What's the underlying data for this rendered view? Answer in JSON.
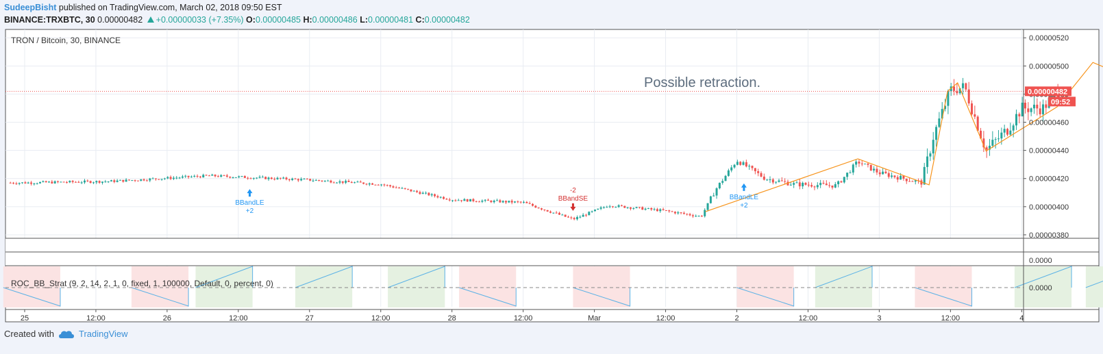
{
  "header": {
    "user": "SudeepBisht",
    "published": "published on TradingView.com, March 02, 2018 09:50 EST",
    "symbol": "BINANCE:TRXBTC, 30",
    "last": "0.00000482",
    "change": "+0.00000033 (+7.35%)",
    "o_label": "O:",
    "o": "0.00000485",
    "h_label": "H:",
    "h": "0.00000486",
    "l_label": "L:",
    "l": "0.00000481",
    "c_label": "C:",
    "c": "0.00000482"
  },
  "footer": {
    "created": "Created with",
    "brand": "TradingView"
  },
  "colors": {
    "up": "#26a69a",
    "down": "#ef5350",
    "accent": "#f7931a",
    "signal_buy": "#2196f3",
    "signal_sell": "#d32f2f",
    "roc_line": "#5bb2e6"
  },
  "chart_data": [
    {
      "type": "candlestick",
      "title": "TRON / Bitcoin, 30, BINANCE",
      "y_ticks": [
        "0.00000520",
        "0.00000500",
        "0.00000480",
        "0.00000460",
        "0.00000440",
        "0.00000420",
        "0.00000400",
        "0.00000380"
      ],
      "ylim": [
        3.79e-06,
        5.24e-06
      ],
      "x_ticks": [
        "25",
        "12:00",
        "26",
        "12:00",
        "27",
        "12:00",
        "28",
        "12:00",
        "Mar",
        "12:00",
        "2",
        "12:00",
        "3",
        "12:00",
        "4"
      ],
      "last_price_label": "0.00000482",
      "countdown": "09:52",
      "annotation": "Possible retraction.",
      "signals": [
        {
          "label": "BBandLE",
          "qty": "+2",
          "kind": "buy"
        },
        {
          "label": "BBandSE",
          "qty": "-2",
          "kind": "sell"
        },
        {
          "label": "BBandLE",
          "qty": "+2",
          "kind": "buy"
        }
      ],
      "path_prices": [
        {
          "day": 4.78,
          "price": 3.965e-06
        },
        {
          "day": 5.85,
          "price": 4.34e-06
        },
        {
          "day": 6.35,
          "price": 4.155e-06
        },
        {
          "day": 6.48,
          "price": 4.82e-06
        },
        {
          "day": 6.55,
          "price": 4.88e-06
        },
        {
          "day": 6.75,
          "price": 4.395e-06
        },
        {
          "day": 7.25,
          "price": 4.71e-06
        },
        {
          "day": 7.5,
          "price": 5.025e-06
        },
        {
          "day": 8.1,
          "price": 4.77e-06
        }
      ],
      "price_anchors": [
        {
          "day": 0.0,
          "price": 4.17e-06
        },
        {
          "day": 0.6,
          "price": 4.18e-06
        },
        {
          "day": 1.3,
          "price": 4.22e-06
        },
        {
          "day": 2.0,
          "price": 4.19e-06
        },
        {
          "day": 2.5,
          "price": 4.16e-06
        },
        {
          "day": 3.0,
          "price": 4.05e-06
        },
        {
          "day": 3.5,
          "price": 4.03e-06
        },
        {
          "day": 3.85,
          "price": 3.91e-06
        },
        {
          "day": 4.1,
          "price": 4.01e-06
        },
        {
          "day": 4.5,
          "price": 3.97e-06
        },
        {
          "day": 4.75,
          "price": 3.93e-06
        },
        {
          "day": 4.85,
          "price": 4.12e-06
        },
        {
          "day": 5.0,
          "price": 4.33e-06
        },
        {
          "day": 5.2,
          "price": 4.2e-06
        },
        {
          "day": 5.4,
          "price": 4.16e-06
        },
        {
          "day": 5.7,
          "price": 4.15e-06
        },
        {
          "day": 5.85,
          "price": 4.32e-06
        },
        {
          "day": 6.0,
          "price": 4.24e-06
        },
        {
          "day": 6.3,
          "price": 4.17e-06
        },
        {
          "day": 6.38,
          "price": 4.5e-06
        },
        {
          "day": 6.5,
          "price": 4.83e-06
        },
        {
          "day": 6.6,
          "price": 4.85e-06
        },
        {
          "day": 6.75,
          "price": 4.4e-06
        },
        {
          "day": 6.9,
          "price": 4.55e-06
        },
        {
          "day": 7.0,
          "price": 4.7e-06
        },
        {
          "day": 7.15,
          "price": 4.7e-06
        },
        {
          "day": 7.25,
          "price": 4.82e-06
        }
      ],
      "x_range_days": [
        -0.25,
        8.35
      ]
    },
    {
      "type": "line",
      "title": "ROC_BB_Strat (9, 2, 14, 2, 1, 0, fixed, 1, 100000, Default, 0, percent, 0)",
      "y_ticks": [
        "0.0000",
        "0.0000"
      ],
      "bands_days": [
        {
          "start": -0.15,
          "end": 0.25,
          "kind": "sell"
        },
        {
          "start": 0.75,
          "end": 1.15,
          "kind": "sell"
        },
        {
          "start": 1.2,
          "end": 1.6,
          "kind": "buy"
        },
        {
          "start": 1.9,
          "end": 2.3,
          "kind": "buy"
        },
        {
          "start": 2.55,
          "end": 2.95,
          "kind": "buy"
        },
        {
          "start": 3.05,
          "end": 3.45,
          "kind": "sell"
        },
        {
          "start": 3.85,
          "end": 4.25,
          "kind": "sell"
        },
        {
          "start": 5.0,
          "end": 5.4,
          "kind": "sell"
        },
        {
          "start": 5.55,
          "end": 5.95,
          "kind": "buy"
        },
        {
          "start": 6.25,
          "end": 6.65,
          "kind": "sell"
        },
        {
          "start": 6.95,
          "end": 7.35,
          "kind": "buy"
        },
        {
          "start": 7.45,
          "end": 7.85,
          "kind": "buy"
        },
        {
          "start": 7.85,
          "end": 8.0,
          "kind": "sell"
        }
      ]
    }
  ]
}
